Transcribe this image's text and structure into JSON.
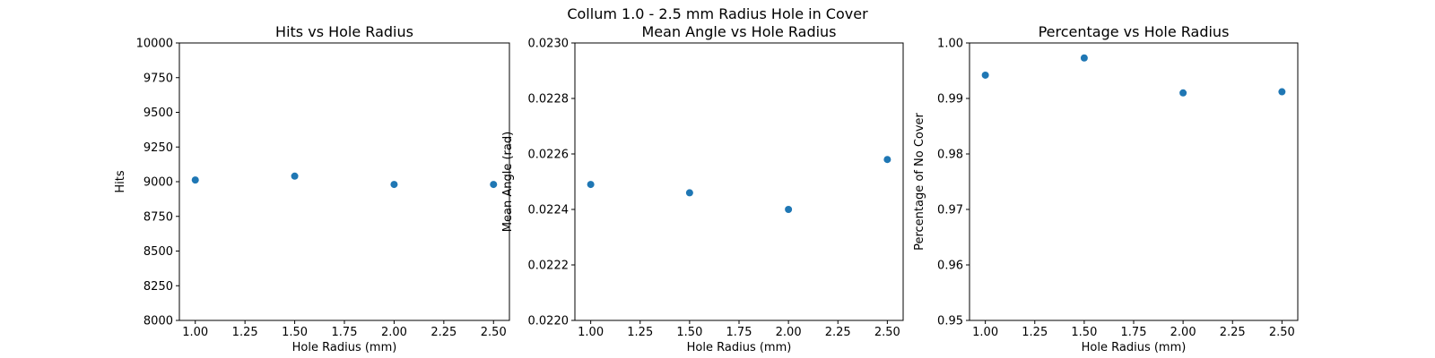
{
  "figure": {
    "suptitle": "Collum 1.0 - 2.5 mm Radius Hole in Cover"
  },
  "colors": {
    "marker": "#1f77b4",
    "axes": "#000000",
    "background": "#ffffff"
  },
  "chart_data": [
    {
      "type": "scatter",
      "title": "Hits vs Hole Radius",
      "xlabel": "Hole Radius (mm)",
      "ylabel": "Hits",
      "x": [
        1.0,
        1.5,
        2.0,
        2.5
      ],
      "y": [
        9012,
        9040,
        8980,
        8980
      ],
      "xlim": [
        0.92,
        2.58
      ],
      "ylim": [
        8000,
        10000
      ],
      "xticks": [
        "1.00",
        "1.25",
        "1.50",
        "1.75",
        "2.00",
        "2.25",
        "2.50"
      ],
      "yticks": [
        "8000",
        "8250",
        "8500",
        "8750",
        "9000",
        "9250",
        "9500",
        "9750",
        "10000"
      ],
      "grid": false
    },
    {
      "type": "scatter",
      "title": "Mean Angle vs Hole Radius",
      "xlabel": "Hole Radius (mm)",
      "ylabel": "Mean Angle (rad)",
      "x": [
        1.0,
        1.5,
        2.0,
        2.5
      ],
      "y": [
        0.02249,
        0.02246,
        0.0224,
        0.02258
      ],
      "xlim": [
        0.92,
        2.58
      ],
      "ylim": [
        0.022,
        0.023
      ],
      "xticks": [
        "1.00",
        "1.25",
        "1.50",
        "1.75",
        "2.00",
        "2.25",
        "2.50"
      ],
      "yticks": [
        "0.0220",
        "0.0222",
        "0.0224",
        "0.0226",
        "0.0228",
        "0.0230"
      ],
      "grid": false
    },
    {
      "type": "scatter",
      "title": "Percentage vs Hole Radius",
      "xlabel": "Hole Radius (mm)",
      "ylabel": "Percentage of No Cover",
      "x": [
        1.0,
        1.5,
        2.0,
        2.5
      ],
      "y": [
        0.9942,
        0.9973,
        0.991,
        0.9912
      ],
      "xlim": [
        0.92,
        2.58
      ],
      "ylim": [
        0.95,
        1.0
      ],
      "xticks": [
        "1.00",
        "1.25",
        "1.50",
        "1.75",
        "2.00",
        "2.25",
        "2.50"
      ],
      "yticks": [
        "0.95",
        "0.96",
        "0.97",
        "0.98",
        "0.99",
        "1.00"
      ],
      "grid": false
    }
  ]
}
